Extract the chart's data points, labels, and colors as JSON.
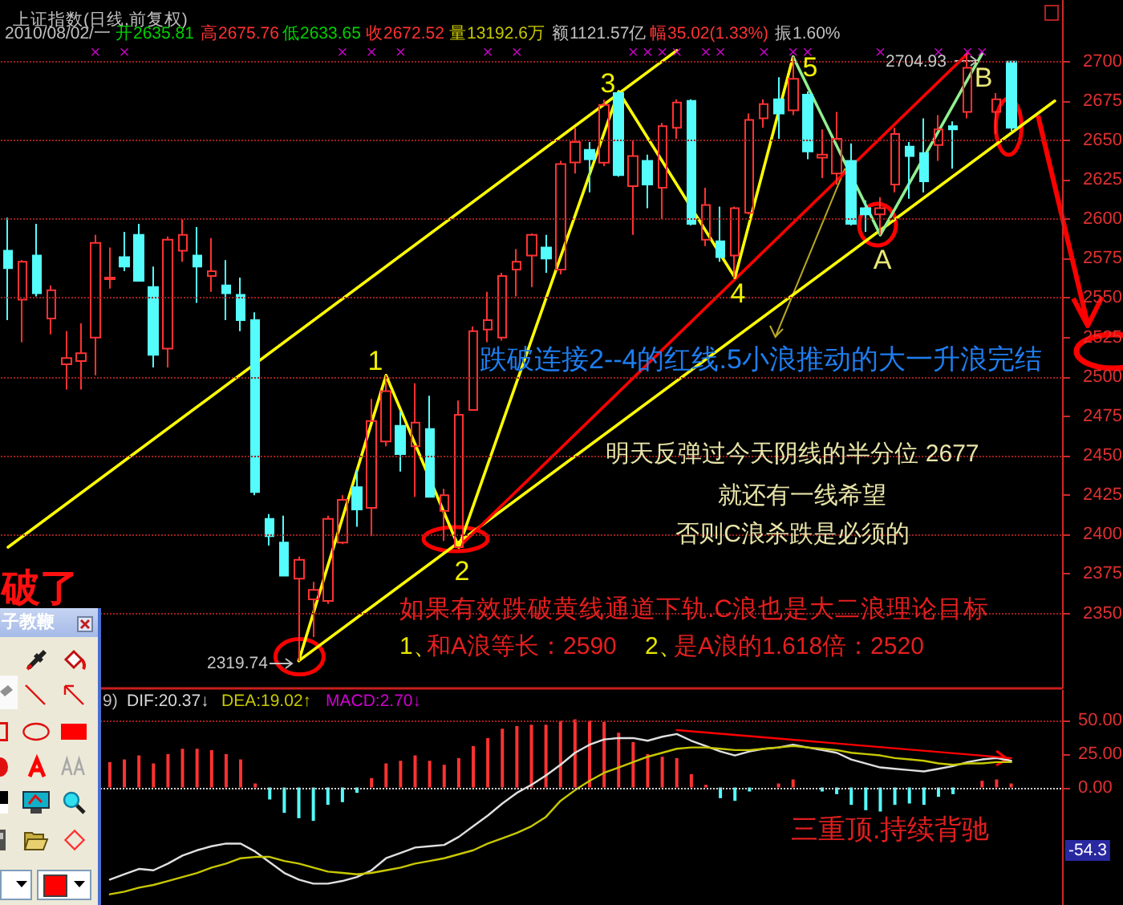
{
  "chart_data": [
    {
      "type": "candlestick",
      "title": "上证指数(日线,前复权)",
      "categories": [
        null,
        null,
        null,
        null,
        null,
        null,
        null,
        null,
        null,
        null,
        null,
        null,
        null,
        null,
        null,
        null,
        null,
        null,
        null,
        null,
        null,
        null,
        null,
        null,
        null,
        null,
        null,
        null,
        null,
        null,
        null,
        null,
        null,
        null,
        null,
        null,
        null,
        null,
        null,
        null,
        null,
        null,
        null,
        null,
        null,
        null,
        null,
        null,
        null,
        null,
        null,
        null,
        null,
        null,
        null,
        null,
        null,
        null,
        null,
        null,
        null,
        null,
        null,
        null,
        null,
        null,
        null,
        null,
        null,
        null,
        null,
        null,
        null
      ],
      "ohlc": [
        [
          2580,
          2601,
          2536,
          2569
        ],
        [
          2549,
          2574,
          2522,
          2573
        ],
        [
          2577,
          2597,
          2551,
          2553
        ],
        [
          2537,
          2558,
          2527,
          2555
        ],
        [
          2508,
          2529,
          2492,
          2512
        ],
        [
          2510,
          2534,
          2492,
          2515
        ],
        [
          2525,
          2590,
          2501,
          2585
        ],
        [
          2562,
          2582,
          2556,
          2563
        ],
        [
          2576,
          2592,
          2567,
          2570
        ],
        [
          2590,
          2597,
          2561,
          2561
        ],
        [
          2557,
          2570,
          2506,
          2514
        ],
        [
          2518,
          2589,
          2506,
          2587
        ],
        [
          2580,
          2600,
          2573,
          2590
        ],
        [
          2577,
          2595,
          2547,
          2570
        ],
        [
          2564,
          2588,
          2554,
          2567
        ],
        [
          2558,
          2574,
          2536,
          2553
        ],
        [
          2552,
          2563,
          2529,
          2536
        ],
        [
          2536,
          2541,
          2425,
          2427
        ],
        [
          2410,
          2413,
          2393,
          2399
        ],
        [
          2395,
          2412,
          2374,
          2374
        ],
        [
          2372,
          2386,
          2319.74,
          2384
        ],
        [
          2359,
          2370,
          2335,
          2365
        ],
        [
          2358,
          2412,
          2356,
          2410
        ],
        [
          2395,
          2425,
          2394,
          2422
        ],
        [
          2430,
          2441,
          2405,
          2416
        ],
        [
          2417,
          2486,
          2399,
          2472
        ],
        [
          2459,
          2501,
          2456,
          2491
        ],
        [
          2469,
          2478,
          2440,
          2451
        ],
        [
          2456,
          2496,
          2424,
          2471
        ],
        [
          2467,
          2488,
          2424,
          2424
        ],
        [
          2415,
          2429,
          2396,
          2425
        ],
        [
          2392,
          2485,
          2392,
          2476
        ],
        [
          2479,
          2532,
          2479,
          2529
        ],
        [
          2530,
          2554,
          2522,
          2536
        ],
        [
          2525,
          2566,
          2523,
          2564
        ],
        [
          2568,
          2581,
          2551,
          2573
        ],
        [
          2577,
          2591,
          2557,
          2590
        ],
        [
          2582,
          2590,
          2566,
          2575
        ],
        [
          2568,
          2637,
          2565,
          2635
        ],
        [
          2636,
          2658,
          2629,
          2649
        ],
        [
          2644,
          2649,
          2617,
          2638
        ],
        [
          2635.81,
          2675.76,
          2633.65,
          2672.52
        ],
        [
          2680,
          2681,
          2627,
          2628
        ],
        [
          2621,
          2650,
          2590,
          2640
        ],
        [
          2637,
          2641,
          2607,
          2622
        ],
        [
          2620,
          2661,
          2600,
          2659
        ],
        [
          2658,
          2676,
          2651,
          2674
        ],
        [
          2675,
          2676,
          2596,
          2597
        ],
        [
          2587,
          2620,
          2583,
          2609
        ],
        [
          2586,
          2608,
          2573,
          2576
        ],
        [
          2577,
          2608,
          2563,
          2607
        ],
        [
          2604,
          2667,
          2603,
          2663
        ],
        [
          2664,
          2676,
          2658,
          2673
        ],
        [
          2676,
          2690,
          2651,
          2667
        ],
        [
          2669,
          2703,
          2666,
          2689
        ],
        [
          2679,
          2681,
          2638,
          2643
        ],
        [
          2639,
          2657,
          2626,
          2641
        ],
        [
          2629,
          2668,
          2622,
          2651
        ],
        [
          2637,
          2648,
          2596,
          2597
        ],
        [
          2607,
          2612,
          2592,
          2603
        ],
        [
          2603,
          2614,
          2590,
          2607
        ],
        [
          2622,
          2658,
          2617,
          2654
        ],
        [
          2646,
          2649,
          2613,
          2640
        ],
        [
          2642,
          2664,
          2617,
          2624
        ],
        [
          2647,
          2666,
          2637,
          2657
        ],
        [
          2659,
          2662,
          2632,
          2657
        ],
        [
          2668,
          2704.93,
          2664,
          2696
        ],
        null,
        [
          2668,
          2680,
          2654,
          2676
        ],
        [
          2700,
          2700,
          2656,
          2658
        ],
        null,
        null,
        null
      ],
      "colors": [
        "#54fcfc",
        "#ff3232",
        "#54fcfc",
        "#ff3232",
        "#ff3232",
        "#ff3232",
        "#ff3232",
        "#ff3232",
        "#54fcfc",
        "#54fcfc",
        "#54fcfc",
        "#ff3232",
        "#ff3232",
        "#54fcfc",
        "#ff3232",
        "#54fcfc",
        "#54fcfc",
        "#54fcfc",
        "#54fcfc",
        "#54fcfc",
        "#ff3232",
        "#ff3232",
        "#ff3232",
        "#ff3232",
        "#54fcfc",
        "#ff3232",
        "#ff3232",
        "#54fcfc",
        "#ff3232",
        "#54fcfc",
        "#ff3232",
        "#ff3232",
        "#ff3232",
        "#ff3232",
        "#ff3232",
        "#ff3232",
        "#ff3232",
        "#54fcfc",
        "#ff3232",
        "#ff3232",
        "#54fcfc",
        "#ff3232",
        "#54fcfc",
        "#ff3232",
        "#54fcfc",
        "#ff3232",
        "#ff3232",
        "#54fcfc",
        "#ff3232",
        "#54fcfc",
        "#ff3232",
        "#ff3232",
        "#ff3232",
        "#54fcfc",
        "#ff3232",
        "#54fcfc",
        "#ff3232",
        "#ff3232",
        "#54fcfc",
        "#54fcfc",
        "#ff3232",
        "#ff3232",
        "#54fcfc",
        "#54fcfc",
        "#ff3232",
        "#54fcfc",
        "#ff3232",
        null,
        "#ff3232",
        "#54fcfc",
        null,
        null,
        null
      ],
      "ylim": [
        2303,
        2739
      ],
      "yticks": [
        2350,
        2375,
        2400,
        2425,
        2450,
        2475,
        2500,
        2525,
        2550,
        2575,
        2600,
        2625,
        2650,
        2675,
        2700
      ],
      "grid": "y",
      "tick_labels": "y",
      "marker": "none",
      "series": [
        {
          "type": "line",
          "color": "#ffff00",
          "values": [
            2392,
            null,
            null,
            null,
            null,
            null,
            null,
            null,
            null,
            null,
            null,
            null,
            null,
            null,
            null,
            null,
            null,
            null,
            null,
            null,
            null,
            null,
            null,
            null,
            null,
            null,
            null,
            null,
            null,
            null,
            null,
            null,
            null,
            null,
            null,
            null,
            null,
            null,
            null,
            null,
            null,
            null,
            null,
            null,
            null,
            null,
            2707,
            null,
            null,
            null,
            null,
            null,
            null,
            null,
            null,
            null,
            null,
            null,
            null,
            null,
            null,
            null,
            null,
            null,
            null,
            null,
            null,
            null,
            null,
            null,
            null,
            null,
            null
          ]
        },
        {
          "type": "line",
          "color": "#ffff00",
          "values": [
            null,
            null,
            null,
            null,
            null,
            null,
            null,
            null,
            null,
            null,
            null,
            null,
            null,
            null,
            null,
            null,
            null,
            null,
            null,
            null,
            2320,
            null,
            null,
            null,
            null,
            null,
            null,
            null,
            null,
            null,
            null,
            null,
            null,
            null,
            null,
            null,
            null,
            null,
            null,
            null,
            null,
            null,
            null,
            null,
            null,
            null,
            null,
            null,
            null,
            null,
            null,
            null,
            null,
            null,
            null,
            null,
            null,
            null,
            null,
            null,
            null,
            null,
            null,
            null,
            null,
            null,
            null,
            null,
            null,
            null,
            null,
            null,
            2675
          ]
        },
        {
          "type": "line",
          "color": "#ff0000",
          "values": [
            null,
            null,
            null,
            null,
            null,
            null,
            null,
            null,
            null,
            null,
            null,
            null,
            null,
            null,
            null,
            null,
            null,
            null,
            null,
            null,
            null,
            null,
            null,
            null,
            null,
            null,
            null,
            null,
            null,
            null,
            null,
            2392,
            null,
            null,
            null,
            null,
            null,
            null,
            null,
            null,
            null,
            null,
            null,
            null,
            null,
            null,
            null,
            null,
            null,
            null,
            null,
            null,
            null,
            null,
            null,
            null,
            null,
            null,
            null,
            null,
            null,
            null,
            null,
            null,
            null,
            null,
            2705,
            null,
            null,
            null,
            null,
            null,
            null
          ]
        },
        {
          "type": "line",
          "color": "#ffff00",
          "values": [
            null,
            null,
            null,
            null,
            null,
            null,
            null,
            null,
            null,
            null,
            null,
            null,
            null,
            null,
            null,
            null,
            null,
            null,
            null,
            null,
            2320,
            null,
            null,
            null,
            null,
            null,
            2501,
            null,
            null,
            null,
            null,
            2392,
            null,
            null,
            null,
            null,
            null,
            null,
            null,
            null,
            null,
            null,
            2681,
            null,
            null,
            null,
            null,
            null,
            null,
            null,
            2563,
            null,
            null,
            null,
            2703,
            null,
            null,
            null,
            null,
            null,
            null,
            null,
            null,
            null,
            null,
            null,
            null,
            null,
            null,
            null,
            null,
            null,
            null
          ]
        },
        {
          "type": "line",
          "color": "#90ee90",
          "values": [
            null,
            null,
            null,
            null,
            null,
            null,
            null,
            null,
            null,
            null,
            null,
            null,
            null,
            null,
            null,
            null,
            null,
            null,
            null,
            null,
            null,
            null,
            null,
            null,
            null,
            null,
            null,
            null,
            null,
            null,
            null,
            null,
            null,
            null,
            null,
            null,
            null,
            null,
            null,
            null,
            null,
            null,
            null,
            null,
            null,
            null,
            null,
            null,
            null,
            null,
            null,
            null,
            null,
            null,
            2703,
            null,
            null,
            null,
            null,
            null,
            2590,
            null,
            null,
            null,
            null,
            null,
            null,
            2705,
            null,
            null,
            null,
            null,
            null
          ]
        },
        {
          "type": "scatter",
          "color": "#ff00ff",
          "marker": "cross",
          "values": [
            null,
            null,
            null,
            null,
            null,
            null,
            2706,
            null,
            2706,
            null,
            null,
            null,
            null,
            null,
            null,
            null,
            null,
            null,
            null,
            null,
            null,
            null,
            null,
            2706,
            null,
            2706,
            null,
            2706,
            null,
            null,
            null,
            null,
            null,
            2706,
            null,
            2706,
            null,
            null,
            null,
            null,
            null,
            null,
            null,
            2706,
            2706,
            2706,
            2706,
            null,
            2706,
            2706,
            null,
            null,
            2706,
            null,
            2706,
            2706,
            null,
            null,
            null,
            null,
            2706,
            null,
            null,
            null,
            2706,
            null,
            2706,
            2706,
            null,
            null,
            null,
            null,
            null
          ]
        }
      ],
      "annotations": [
        "2010/08/02/一",
        "开2635.81",
        "高2675.76",
        "低2633.65",
        "收2672.52",
        "量13192.6万",
        "额1121.57亿",
        "幅35.02(1.33%)",
        "振1.60%",
        "2704.93",
        "2319.74",
        "1",
        "2",
        "3",
        "4",
        "5",
        "A",
        "B",
        "跌破连接2--4的红线.5小浪推动的大一升浪完结",
        "明天反弹过今天阴线的半分位 2677",
        "就还有一线希望",
        "否则C浪杀跌是必须的",
        "如果有效跌破黄线通道下轨.C浪也是大二浪理论目标",
        "1、",
        "和A浪等长：2590",
        "2、",
        "是A浪的1.618倍：2520",
        "破了",
        "子教鞭"
      ]
    },
    {
      "type": "bar",
      "categories": [
        null,
        null,
        null,
        null,
        null,
        null,
        null,
        null,
        null,
        null,
        null,
        null,
        null,
        null,
        null,
        null,
        null,
        null,
        null,
        null,
        null,
        null,
        null,
        null,
        null,
        null,
        null,
        null,
        null,
        null,
        null,
        null,
        null,
        null,
        null,
        null,
        null,
        null,
        null,
        null,
        null,
        null,
        null,
        null,
        null,
        null,
        null,
        null,
        null,
        null,
        null,
        null,
        null,
        null,
        null,
        null,
        null,
        null,
        null,
        null,
        null,
        null,
        null,
        null,
        null,
        null,
        null,
        null,
        null,
        null,
        null,
        null,
        null
      ],
      "series": [
        {
          "values": [
            null,
            null,
            null,
            null,
            null,
            null,
            null,
            19,
            21,
            24,
            18,
            25,
            29,
            29,
            28,
            25,
            21,
            3,
            -9,
            -19,
            -23,
            -25,
            -13,
            -11,
            -4,
            7,
            18,
            20,
            24,
            20,
            17,
            22,
            31,
            37,
            44,
            46,
            47,
            47,
            50,
            51,
            50,
            49,
            41,
            34,
            25,
            23,
            22,
            10,
            2,
            -8,
            -10,
            -3,
            null,
            3,
            6,
            null,
            -3,
            -5,
            -13,
            -17,
            -18,
            -13,
            -12,
            -13,
            -7,
            -5,
            null,
            5,
            6,
            3,
            null,
            null,
            null
          ],
          "colors": [
            null,
            null,
            null,
            null,
            null,
            null,
            null,
            "#ff3232",
            "#ff3232",
            "#ff3232",
            "#ff3232",
            "#ff3232",
            "#ff3232",
            "#ff3232",
            "#ff3232",
            "#ff3232",
            "#ff3232",
            "#ff3232",
            "#54fcfc",
            "#54fcfc",
            "#54fcfc",
            "#54fcfc",
            "#54fcfc",
            "#54fcfc",
            "#54fcfc",
            "#ff3232",
            "#ff3232",
            "#ff3232",
            "#ff3232",
            "#ff3232",
            "#ff3232",
            "#ff3232",
            "#ff3232",
            "#ff3232",
            "#ff3232",
            "#ff3232",
            "#ff3232",
            "#ff3232",
            "#ff3232",
            "#ff3232",
            "#ff3232",
            "#ff3232",
            "#ff3232",
            "#ff3232",
            "#ff3232",
            "#ff3232",
            "#ff3232",
            "#ff3232",
            "#ff3232",
            "#54fcfc",
            "#54fcfc",
            "#54fcfc",
            null,
            "#ff3232",
            "#ff3232",
            null,
            "#54fcfc",
            "#54fcfc",
            "#54fcfc",
            "#54fcfc",
            "#54fcfc",
            "#54fcfc",
            "#54fcfc",
            "#54fcfc",
            "#54fcfc",
            "#54fcfc",
            null,
            "#ff3232",
            "#ff3232",
            "#ff3232",
            null,
            null,
            null
          ]
        },
        {
          "type": "line",
          "color": "#e0e0e0",
          "values": [
            null,
            null,
            null,
            null,
            null,
            null,
            null,
            -69,
            -65,
            -61,
            -62,
            -57,
            -51,
            -47,
            -44,
            -42,
            -42,
            -48,
            -56,
            -64,
            -69,
            -72,
            -72,
            -70,
            -67,
            -62,
            -53,
            -49,
            -45,
            -44,
            -43,
            -37,
            -29,
            -21,
            -12,
            -4,
            2,
            9,
            17,
            26,
            32,
            36,
            37,
            37,
            35,
            38,
            40,
            35,
            31,
            27,
            24,
            27,
            29,
            30,
            32,
            30,
            28,
            26,
            21,
            18,
            15,
            14,
            13,
            12,
            14,
            16,
            19,
            21,
            22,
            20,
            null,
            null,
            null
          ]
        },
        {
          "type": "line",
          "color": "#c8c800",
          "values": [
            null,
            null,
            null,
            null,
            null,
            null,
            null,
            -80,
            -78,
            -75,
            -73,
            -70,
            -67,
            -64,
            -60,
            -57,
            -53,
            -52,
            -52,
            -55,
            -57,
            -60,
            -63,
            -64,
            -65,
            -64,
            -62,
            -60,
            -57,
            -55,
            -53,
            -50,
            -47,
            -42,
            -38,
            -34,
            -29,
            -22,
            -10,
            -2,
            5,
            11,
            15,
            19,
            23,
            26,
            29,
            30,
            30,
            29,
            28,
            28,
            29,
            30,
            31,
            30,
            29,
            28,
            26,
            25,
            24,
            22,
            21,
            20,
            18,
            17,
            18,
            18,
            19,
            19,
            null,
            null,
            null
          ]
        },
        {
          "type": "line",
          "color": "#ff0000",
          "values": [
            null,
            null,
            null,
            null,
            null,
            null,
            null,
            null,
            null,
            null,
            null,
            null,
            null,
            null,
            null,
            null,
            null,
            null,
            null,
            null,
            null,
            null,
            null,
            null,
            null,
            null,
            null,
            null,
            null,
            null,
            null,
            null,
            null,
            null,
            null,
            null,
            null,
            null,
            null,
            null,
            null,
            null,
            null,
            null,
            null,
            null,
            43,
            null,
            null,
            null,
            null,
            null,
            null,
            null,
            null,
            null,
            null,
            null,
            null,
            null,
            null,
            null,
            null,
            null,
            null,
            null,
            null,
            null,
            null,
            22,
            null,
            null,
            null
          ]
        }
      ],
      "ylim": [
        -88,
        73
      ],
      "yticks": [
        {
          "value": 0,
          "label": "0.00"
        },
        {
          "value": 25,
          "label": "25.00"
        },
        {
          "value": 50,
          "label": "50.00"
        }
      ],
      "ref_lines": [
        {
          "axis": "y",
          "value": 50,
          "color": "#a01e1e",
          "line_style": "dotted"
        },
        {
          "axis": "y",
          "value": 0,
          "color": "#d0d0d0",
          "line_style": "dotted"
        }
      ],
      "tick_labels": "y",
      "marker": "none",
      "annotations": [
        "9)",
        "DIF:20.37↓",
        "DEA:19.02↑",
        "MACD:2.70↓",
        "三重顶.持续背驰",
        "-54.3"
      ]
    }
  ]
}
